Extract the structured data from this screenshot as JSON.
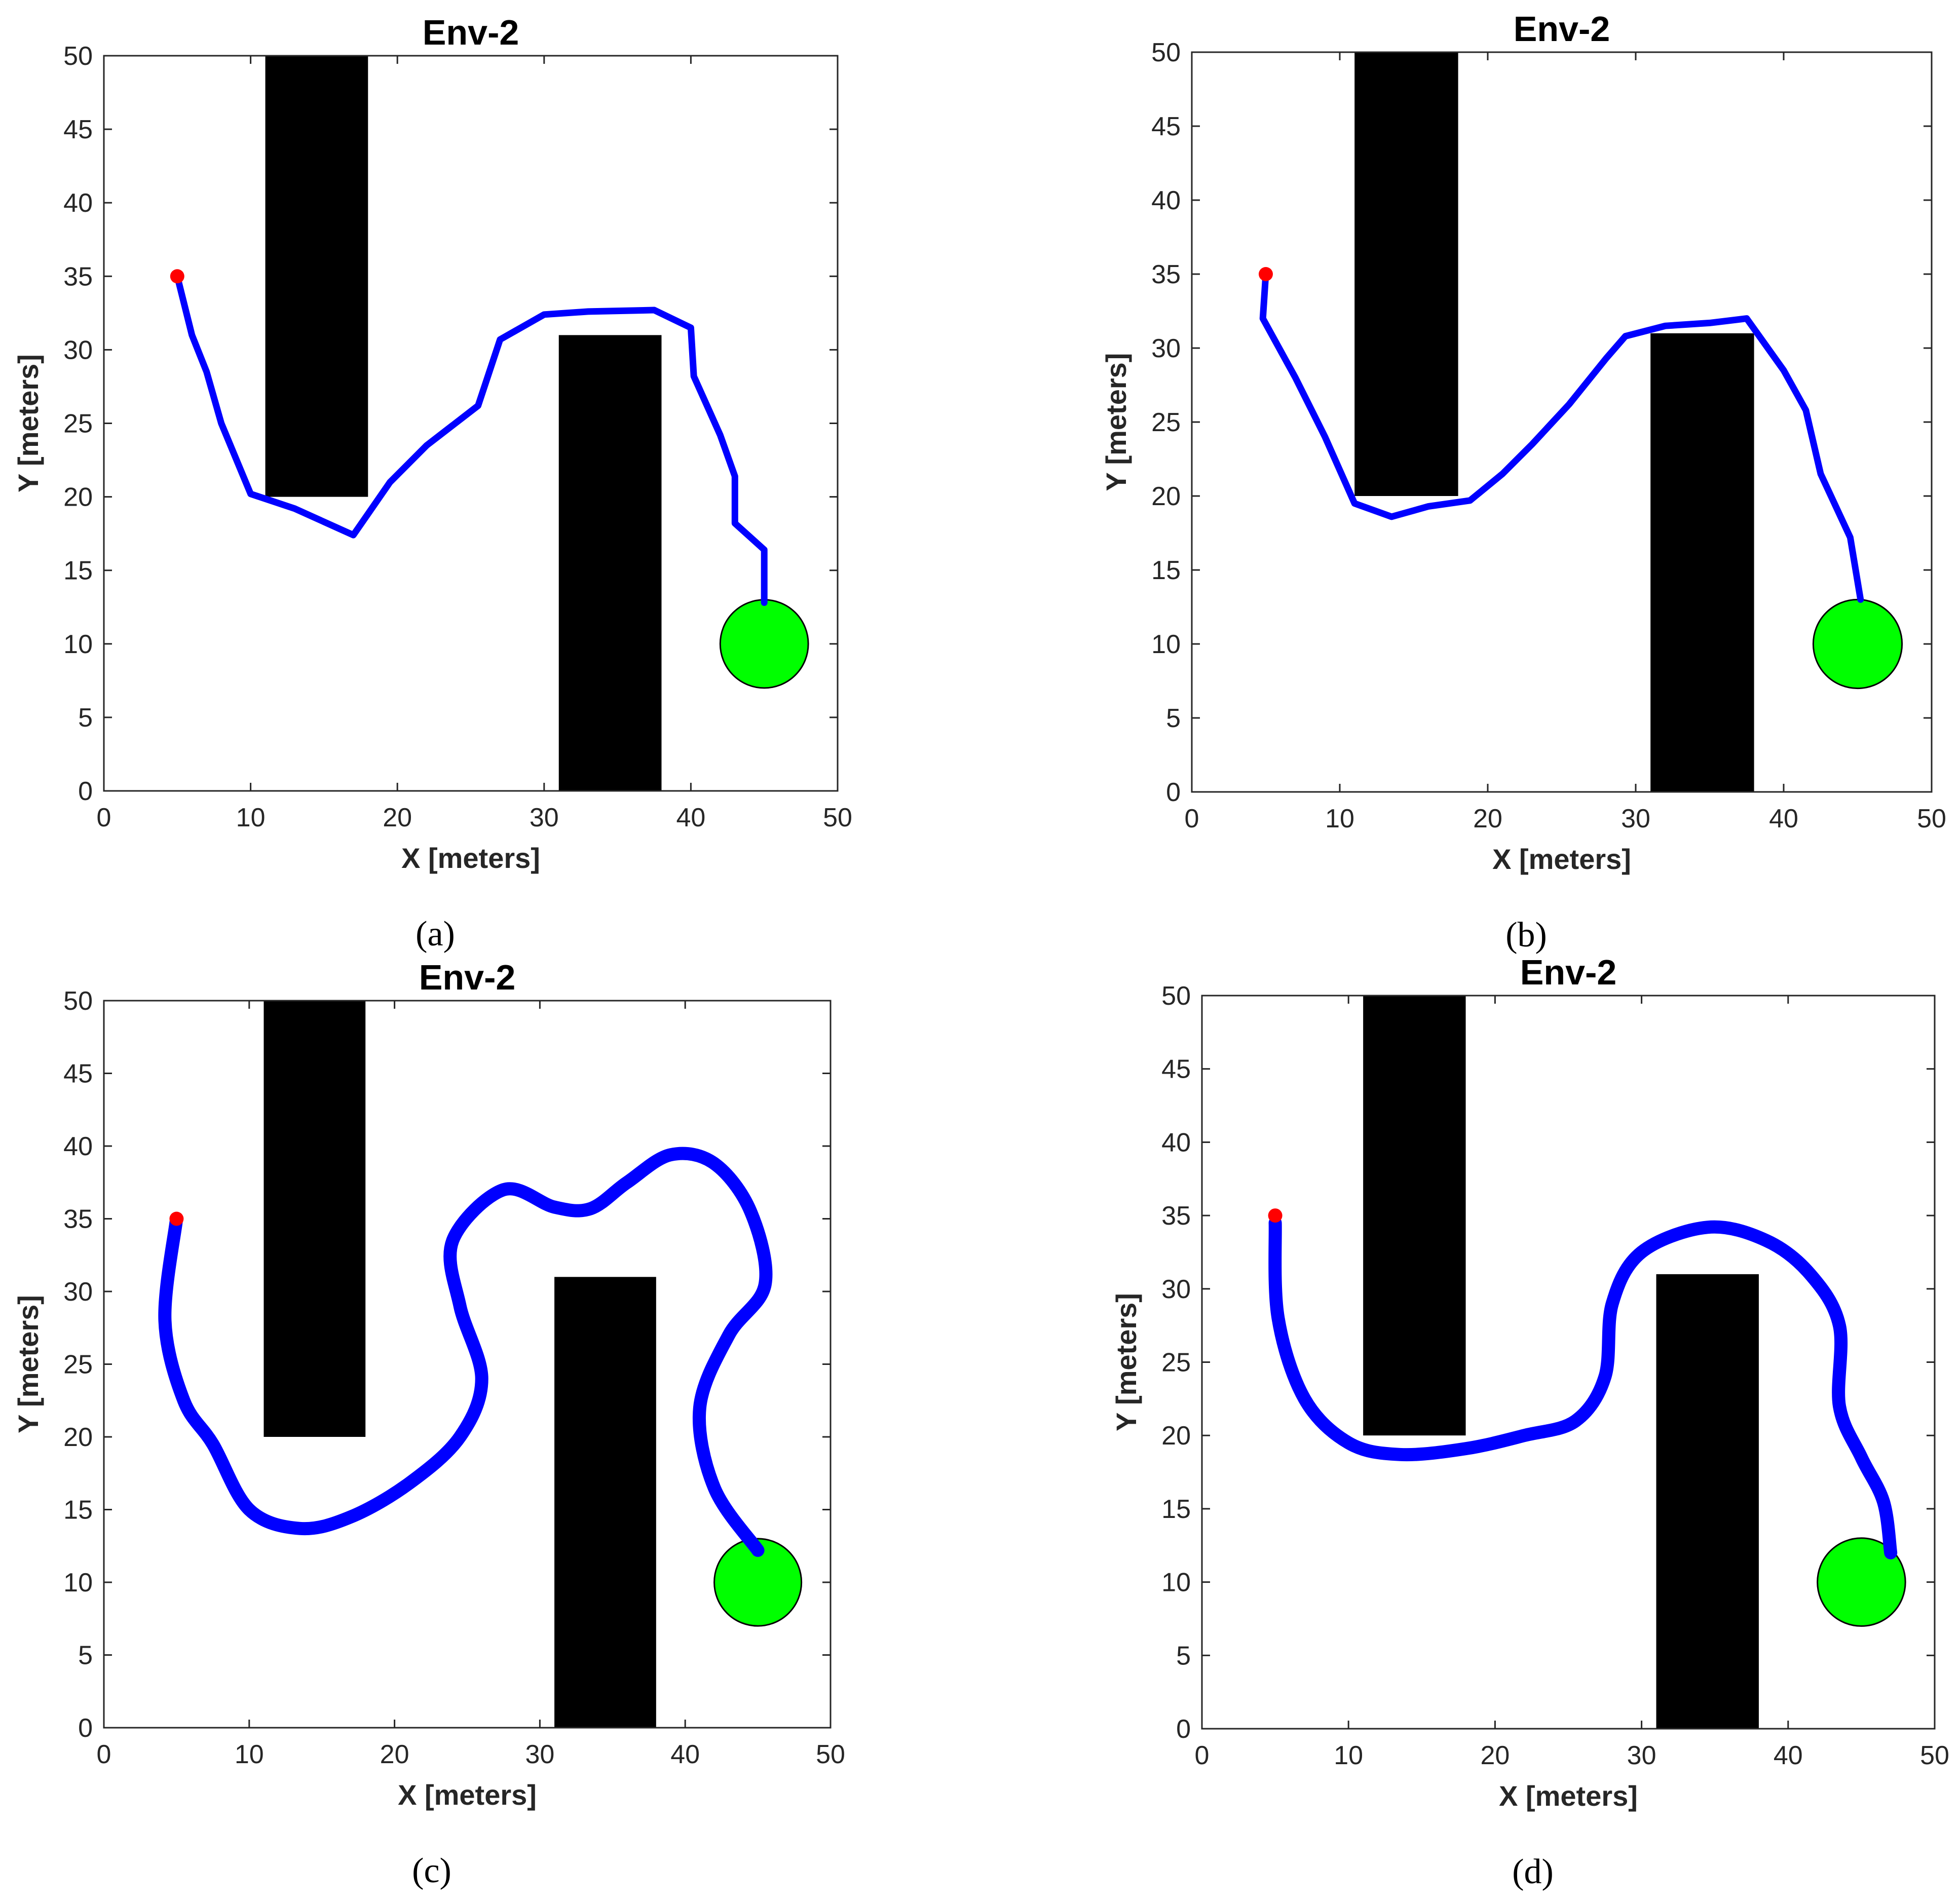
{
  "figure": {
    "background": "#ffffff",
    "obstacle_color": "#000000",
    "path_color": "#0000ff",
    "start_color": "#ff0000",
    "goal_color": "#00ff00",
    "goal_edge_color": "#000000"
  },
  "chart_data": [
    {
      "type": "line",
      "caption": "(a)",
      "title": "Env-2",
      "xlabel": "X [meters]",
      "ylabel": "Y [meters]",
      "xlim": [
        0,
        50
      ],
      "ylim": [
        0,
        50
      ],
      "xticks": [
        "0",
        "10",
        "20",
        "30",
        "40",
        "50"
      ],
      "yticks": [
        "0",
        "5",
        "10",
        "15",
        "20",
        "25",
        "30",
        "35",
        "40",
        "45",
        "50"
      ],
      "grid": false,
      "obstacles": [
        {
          "x0": 11,
          "x1": 18,
          "y0": 20,
          "y1": 50
        },
        {
          "x0": 31,
          "x1": 38,
          "y0": 0,
          "y1": 31
        }
      ],
      "start": {
        "x": 5,
        "y": 35
      },
      "goal": {
        "x": 45,
        "y": 10,
        "r": 3
      },
      "path_style": "segments",
      "path": [
        [
          5,
          35
        ],
        [
          6,
          31
        ],
        [
          7,
          28.5
        ],
        [
          8,
          25
        ],
        [
          10,
          20.2
        ],
        [
          13,
          19.2
        ],
        [
          17,
          17.4
        ],
        [
          19.5,
          21
        ],
        [
          22,
          23.5
        ],
        [
          25.5,
          26.2
        ],
        [
          27,
          30.7
        ],
        [
          30,
          32.4
        ],
        [
          33,
          32.6
        ],
        [
          37.5,
          32.7
        ],
        [
          40,
          31.5
        ],
        [
          40.2,
          28.2
        ],
        [
          42,
          24.2
        ],
        [
          43,
          21.4
        ],
        [
          43,
          18.2
        ],
        [
          45,
          16.4
        ],
        [
          45,
          12.8
        ]
      ]
    },
    {
      "type": "line",
      "caption": "(b)",
      "title": "Env-2",
      "xlabel": "X [meters]",
      "ylabel": "Y [meters]",
      "xlim": [
        0,
        50
      ],
      "ylim": [
        0,
        50
      ],
      "xticks": [
        "0",
        "10",
        "20",
        "30",
        "40",
        "50"
      ],
      "yticks": [
        "0",
        "5",
        "10",
        "15",
        "20",
        "25",
        "30",
        "35",
        "40",
        "45",
        "50"
      ],
      "grid": false,
      "obstacles": [
        {
          "x0": 11,
          "x1": 18,
          "y0": 20,
          "y1": 50
        },
        {
          "x0": 31,
          "x1": 38,
          "y0": 0,
          "y1": 31
        }
      ],
      "start": {
        "x": 5,
        "y": 35
      },
      "goal": {
        "x": 45,
        "y": 10,
        "r": 3
      },
      "path_style": "segments",
      "path": [
        [
          5,
          35
        ],
        [
          4.8,
          32
        ],
        [
          7,
          28
        ],
        [
          9,
          24
        ],
        [
          11,
          19.5
        ],
        [
          13.5,
          18.6
        ],
        [
          16,
          19.3
        ],
        [
          18.8,
          19.7
        ],
        [
          21,
          21.5
        ],
        [
          23,
          23.5
        ],
        [
          25.5,
          26.2
        ],
        [
          28,
          29.3
        ],
        [
          29.3,
          30.8
        ],
        [
          32,
          31.5
        ],
        [
          35,
          31.7
        ],
        [
          37.5,
          32
        ],
        [
          40,
          28.5
        ],
        [
          41.5,
          25.8
        ],
        [
          42.5,
          21.5
        ],
        [
          44.5,
          17.2
        ],
        [
          45.2,
          13
        ]
      ]
    },
    {
      "type": "line",
      "caption": "(c)",
      "title": "Env-2",
      "xlabel": "X [meters]",
      "ylabel": "Y [meters]",
      "xlim": [
        0,
        50
      ],
      "ylim": [
        0,
        50
      ],
      "xticks": [
        "0",
        "10",
        "20",
        "30",
        "40",
        "50"
      ],
      "yticks": [
        "0",
        "5",
        "10",
        "15",
        "20",
        "25",
        "30",
        "35",
        "40",
        "45",
        "50"
      ],
      "grid": false,
      "obstacles": [
        {
          "x0": 11,
          "x1": 18,
          "y0": 20,
          "y1": 50
        },
        {
          "x0": 31,
          "x1": 38,
          "y0": 0,
          "y1": 31
        }
      ],
      "start": {
        "x": 5,
        "y": 35
      },
      "goal": {
        "x": 45,
        "y": 10,
        "r": 3
      },
      "path_style": "smooth",
      "path": [
        [
          5,
          35
        ],
        [
          4.2,
          28
        ],
        [
          5.5,
          22.5
        ],
        [
          7.5,
          19.5
        ],
        [
          10,
          15
        ],
        [
          13.5,
          13.7
        ],
        [
          17,
          14.5
        ],
        [
          21,
          16.8
        ],
        [
          24.5,
          20
        ],
        [
          26,
          24
        ],
        [
          24.5,
          29
        ],
        [
          24,
          33.5
        ],
        [
          27.5,
          37
        ],
        [
          31,
          35.8
        ],
        [
          33.5,
          35.7
        ],
        [
          36,
          37.5
        ],
        [
          39,
          39.4
        ],
        [
          42,
          38.8
        ],
        [
          44.5,
          35.5
        ],
        [
          45.5,
          30.5
        ],
        [
          43,
          27
        ],
        [
          41,
          22
        ],
        [
          42,
          16.5
        ],
        [
          45,
          12.2
        ]
      ]
    },
    {
      "type": "line",
      "caption": "(d)",
      "title": "Env-2",
      "xlabel": "X [meters]",
      "ylabel": "Y [meters]",
      "xlim": [
        0,
        50
      ],
      "ylim": [
        0,
        50
      ],
      "xticks": [
        "0",
        "10",
        "20",
        "30",
        "40",
        "50"
      ],
      "yticks": [
        "0",
        "5",
        "10",
        "15",
        "20",
        "25",
        "30",
        "35",
        "40",
        "45",
        "50"
      ],
      "grid": false,
      "obstacles": [
        {
          "x0": 11,
          "x1": 18,
          "y0": 20,
          "y1": 50
        },
        {
          "x0": 31,
          "x1": 38,
          "y0": 0,
          "y1": 31
        }
      ],
      "start": {
        "x": 5,
        "y": 35
      },
      "goal": {
        "x": 45,
        "y": 10,
        "r": 3
      },
      "path_style": "smooth",
      "path": [
        [
          5,
          34.5
        ],
        [
          5.2,
          28
        ],
        [
          7,
          22.5
        ],
        [
          10,
          19.5
        ],
        [
          13.5,
          18.7
        ],
        [
          18,
          19.1
        ],
        [
          22,
          20
        ],
        [
          25.5,
          21
        ],
        [
          27.5,
          24
        ],
        [
          28,
          29
        ],
        [
          30,
          32.5
        ],
        [
          34.5,
          34.2
        ],
        [
          38.5,
          33.3
        ],
        [
          41.5,
          31
        ],
        [
          43.5,
          27.5
        ],
        [
          43.5,
          22
        ],
        [
          45,
          18.5
        ],
        [
          46.5,
          15.5
        ],
        [
          47,
          12
        ]
      ]
    }
  ]
}
